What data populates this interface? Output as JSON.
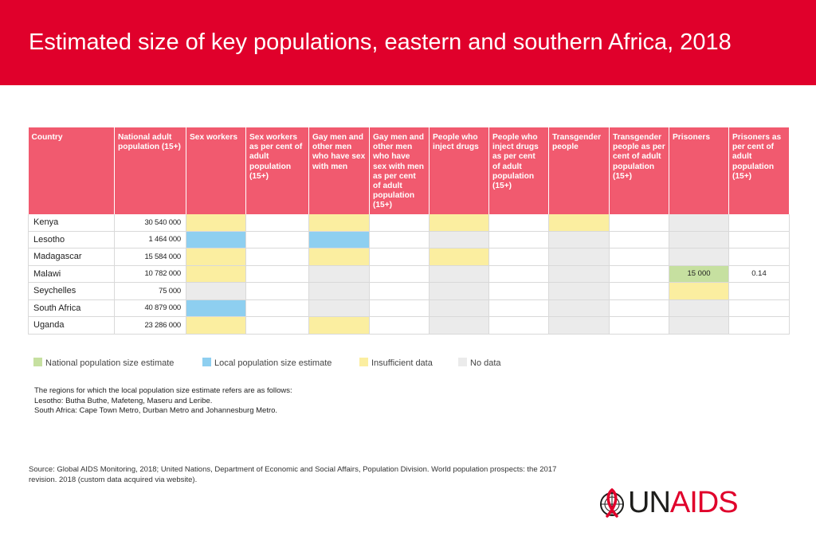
{
  "header": {
    "title": "Estimated size of key populations, eastern and southern Africa, 2018"
  },
  "table": {
    "columns": [
      "Country",
      "National adult population (15+)",
      "Sex workers",
      "Sex workers as per cent of adult population (15+)",
      "Gay men and other men who have sex with men",
      "Gay men and other men who have sex with men as per cent of adult population (15+)",
      "People who inject drugs",
      "People who inject drugs as per cent of adult population (15+)",
      "Transgender people",
      "Transgender people as per cent of adult population (15+)",
      "Prisoners",
      "Prisoners as per cent of adult population (15+)"
    ],
    "rows": [
      {
        "country": "Kenya",
        "population": "30 540 000",
        "cells": [
          {
            "v": "",
            "c": "yellow"
          },
          {
            "v": "",
            "c": ""
          },
          {
            "v": "",
            "c": "yellow"
          },
          {
            "v": "",
            "c": ""
          },
          {
            "v": "",
            "c": "yellow"
          },
          {
            "v": "",
            "c": ""
          },
          {
            "v": "",
            "c": "yellow"
          },
          {
            "v": "",
            "c": ""
          },
          {
            "v": "",
            "c": "grey"
          },
          {
            "v": "",
            "c": ""
          }
        ]
      },
      {
        "country": "Lesotho",
        "population": "1 464 000",
        "cells": [
          {
            "v": "",
            "c": "blue"
          },
          {
            "v": "",
            "c": ""
          },
          {
            "v": "",
            "c": "blue"
          },
          {
            "v": "",
            "c": ""
          },
          {
            "v": "",
            "c": "grey"
          },
          {
            "v": "",
            "c": ""
          },
          {
            "v": "",
            "c": "grey"
          },
          {
            "v": "",
            "c": ""
          },
          {
            "v": "",
            "c": "grey"
          },
          {
            "v": "",
            "c": ""
          }
        ]
      },
      {
        "country": "Madagascar",
        "population": "15 584 000",
        "cells": [
          {
            "v": "",
            "c": "yellow"
          },
          {
            "v": "",
            "c": ""
          },
          {
            "v": "",
            "c": "yellow"
          },
          {
            "v": "",
            "c": ""
          },
          {
            "v": "",
            "c": "yellow"
          },
          {
            "v": "",
            "c": ""
          },
          {
            "v": "",
            "c": "grey"
          },
          {
            "v": "",
            "c": ""
          },
          {
            "v": "",
            "c": "grey"
          },
          {
            "v": "",
            "c": ""
          }
        ]
      },
      {
        "country": "Malawi",
        "population": "10 782 000",
        "cells": [
          {
            "v": "",
            "c": "yellow"
          },
          {
            "v": "",
            "c": ""
          },
          {
            "v": "",
            "c": "grey"
          },
          {
            "v": "",
            "c": ""
          },
          {
            "v": "",
            "c": "grey"
          },
          {
            "v": "",
            "c": ""
          },
          {
            "v": "",
            "c": "grey"
          },
          {
            "v": "",
            "c": ""
          },
          {
            "v": "15 000",
            "c": "green"
          },
          {
            "v": "0.14",
            "c": ""
          }
        ]
      },
      {
        "country": "Seychelles",
        "population": "75 000",
        "cells": [
          {
            "v": "",
            "c": "grey"
          },
          {
            "v": "",
            "c": ""
          },
          {
            "v": "",
            "c": "grey"
          },
          {
            "v": "",
            "c": ""
          },
          {
            "v": "",
            "c": "grey"
          },
          {
            "v": "",
            "c": ""
          },
          {
            "v": "",
            "c": "grey"
          },
          {
            "v": "",
            "c": ""
          },
          {
            "v": "",
            "c": "yellow"
          },
          {
            "v": "",
            "c": ""
          }
        ]
      },
      {
        "country": "South Africa",
        "population": "40 879 000",
        "cells": [
          {
            "v": "",
            "c": "blue"
          },
          {
            "v": "",
            "c": ""
          },
          {
            "v": "",
            "c": "grey"
          },
          {
            "v": "",
            "c": ""
          },
          {
            "v": "",
            "c": "grey"
          },
          {
            "v": "",
            "c": ""
          },
          {
            "v": "",
            "c": "grey"
          },
          {
            "v": "",
            "c": ""
          },
          {
            "v": "",
            "c": "grey"
          },
          {
            "v": "",
            "c": ""
          }
        ]
      },
      {
        "country": "Uganda",
        "population": "23 286 000",
        "cells": [
          {
            "v": "",
            "c": "yellow"
          },
          {
            "v": "",
            "c": ""
          },
          {
            "v": "",
            "c": "yellow"
          },
          {
            "v": "",
            "c": ""
          },
          {
            "v": "",
            "c": "grey"
          },
          {
            "v": "",
            "c": ""
          },
          {
            "v": "",
            "c": "grey"
          },
          {
            "v": "",
            "c": ""
          },
          {
            "v": "",
            "c": "grey"
          },
          {
            "v": "",
            "c": ""
          }
        ]
      }
    ]
  },
  "legend": [
    {
      "label": "National population size estimate",
      "color": "#c6e0a0"
    },
    {
      "label": "Local population size estimate",
      "color": "#8ecff0"
    },
    {
      "label": "Insufficient data",
      "color": "#fbeea0"
    },
    {
      "label": "No data",
      "color": "#ebebeb"
    }
  ],
  "notes": {
    "line1": "The regions for which the local population size estimate refers are as follows:",
    "line2": "Lesotho: Butha Buthe, Mafeteng, Maseru and Leribe.",
    "line3": "South Africa: Cape Town Metro, Durban Metro and Johannesburg Metro."
  },
  "source": {
    "text": "Source: Global AIDS Monitoring, 2018; United Nations, Department of Economic and Social Affairs, Population Division. World population prospects: the 2017 revision. 2018 (custom data acquired via website)."
  },
  "logo": {
    "part1": "UN",
    "part2": "AIDS",
    "icon": "un-emblem-ribbon-icon"
  }
}
